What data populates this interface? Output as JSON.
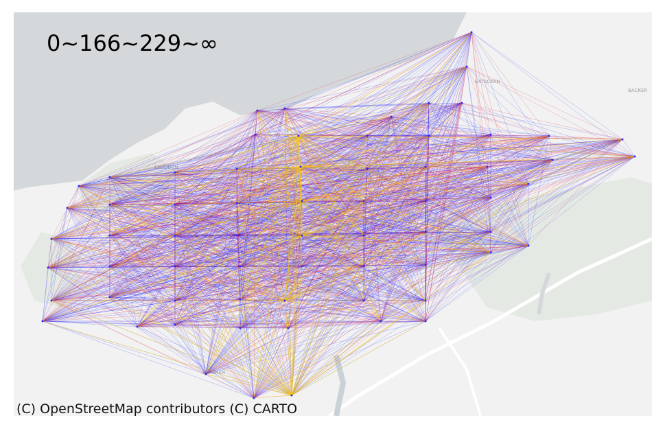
{
  "legend": {
    "label": "0~166~229~∞"
  },
  "attribution": "(C) OpenStreetMap contributors (C) CARTO",
  "basemap": {
    "labels": [
      "EKUDDEN",
      "EXTACKAN",
      "BACKER",
      "LERGREN"
    ],
    "colors": {
      "water": "#d4d8da",
      "land": "#f1f2f1",
      "green": "#e4eae3",
      "road": "#ffffff"
    }
  },
  "edge_colors": {
    "low": "#1a1aff",
    "mid": "#e0103c",
    "high": "#ffd000"
  }
}
